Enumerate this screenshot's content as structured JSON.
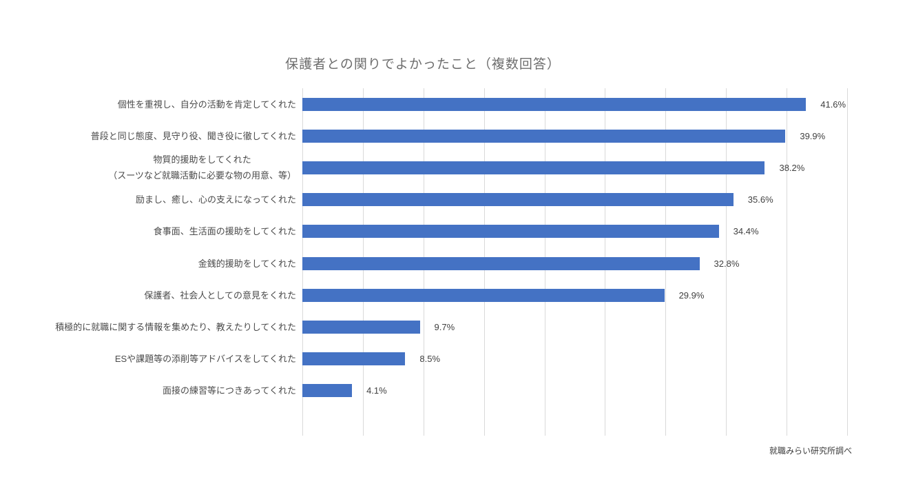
{
  "chart_data": {
    "type": "bar",
    "orientation": "horizontal",
    "title": "保護者との関りでよかったこと（複数回答）",
    "categories": [
      "個性を重視し、自分の活動を肯定してくれた",
      "普段と同じ態度、見守り役、聞き役に徹してくれた",
      "物質的援助をしてくれた\n（スーツなど就職活動に必要な物の用意、等）",
      "励まし、癒し、心の支えになってくれた",
      "食事面、生活面の援助をしてくれた",
      "金銭的援助をしてくれた",
      "保護者、社会人としての意見をくれた",
      "積極的に就職に関する情報を集めたり、教えたりしてくれた",
      "ESや課題等の添削等アドバイスをしてくれた",
      "面接の練習等につきあってくれた"
    ],
    "values": [
      41.6,
      39.9,
      38.2,
      35.6,
      34.4,
      32.8,
      29.9,
      9.7,
      8.5,
      4.1
    ],
    "value_labels": [
      "41.6%",
      "39.9%",
      "38.2%",
      "35.6%",
      "34.4%",
      "32.8%",
      "29.9%",
      "9.7%",
      "8.5%",
      "4.1%"
    ],
    "xlim": [
      0,
      45
    ],
    "gridline_interval": 5,
    "grid": true,
    "legend": false,
    "bar_color": "#4472c4",
    "gridline_color": "#d9d9d9",
    "title_color": "#6d6d6d",
    "source": "就職みらい研究所調べ"
  }
}
